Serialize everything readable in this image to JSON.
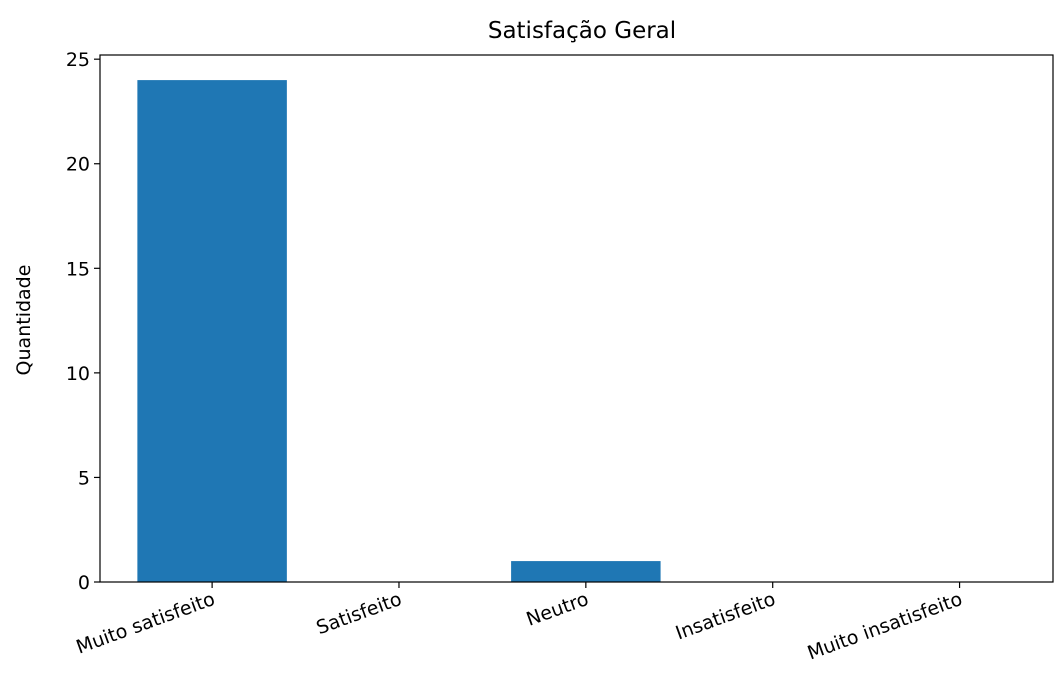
{
  "chart_data": {
    "type": "bar",
    "title": "Satisfação Geral",
    "xlabel": "",
    "ylabel": "Quantidade",
    "categories": [
      "Muito satisfeito",
      "Satisfeito",
      "Neutro",
      "Insatisfeito",
      "Muito insatisfeito"
    ],
    "values": [
      24,
      0,
      1,
      0,
      0
    ],
    "ylim": [
      0,
      25.2
    ],
    "yticks": [
      "0",
      "5",
      "10",
      "15",
      "20",
      "25"
    ],
    "grid": false,
    "bar_color": "#1f77b4",
    "xtick_rotation": "20° counter-clockwise"
  }
}
